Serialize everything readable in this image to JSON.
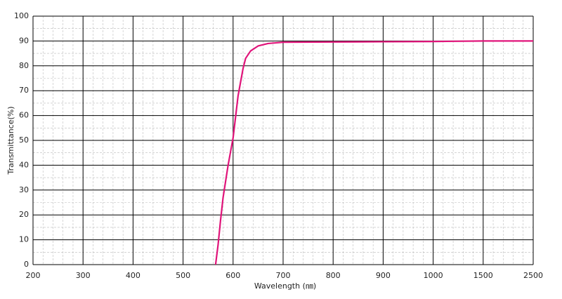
{
  "chart_data": {
    "type": "line",
    "x_label": "Wavelength (㎚)",
    "y_label": "Transmittance(%)",
    "x": [
      565,
      570,
      575,
      580,
      590,
      600,
      610,
      620,
      625,
      635,
      650,
      670,
      700,
      800,
      900,
      1000,
      1500,
      2500
    ],
    "series": [
      {
        "name": "Transmittance",
        "color": "#e0147a",
        "values": [
          0,
          8,
          18,
          27,
          40,
          51,
          68,
          79,
          83,
          86,
          88,
          89,
          89.5,
          89.6,
          89.7,
          89.8,
          90,
          90
        ]
      }
    ],
    "xlim": [
      200,
      2500
    ],
    "xticks": [
      200,
      300,
      400,
      500,
      600,
      700,
      800,
      900,
      1000,
      1500,
      2500
    ],
    "ylim": [
      0,
      100
    ],
    "yticks": [
      0,
      10,
      20,
      30,
      40,
      50,
      60,
      70,
      80,
      90,
      100
    ],
    "grid": true
  }
}
